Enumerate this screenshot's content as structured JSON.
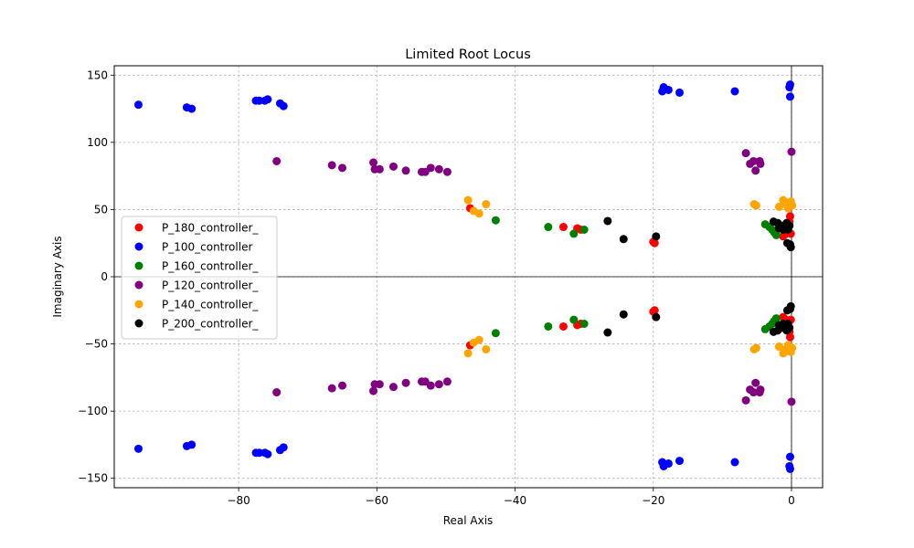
{
  "chart_data": {
    "type": "scatter",
    "title": "Limited Root Locus",
    "xlabel": "Real Axis",
    "ylabel": "Imaginary Axis",
    "xlim": [
      -98,
      4.5
    ],
    "ylim": [
      -157,
      157
    ],
    "xticks": [
      -80,
      -60,
      -40,
      -20,
      0
    ],
    "yticks": [
      -150,
      -100,
      -50,
      0,
      50,
      100,
      150
    ],
    "xtick_labels": [
      "−80",
      "−60",
      "−40",
      "−20",
      "0"
    ],
    "ytick_labels": [
      "−150",
      "−100",
      "−50",
      "0",
      "50",
      "100",
      "150"
    ],
    "grid": true,
    "legend_position": "center-left",
    "mirror_conjugate": true,
    "series": [
      {
        "name": "P_180_controller_",
        "color": "#ff0000",
        "points": [
          [
            -46.5,
            51
          ],
          [
            -33,
            37
          ],
          [
            -30.5,
            35
          ],
          [
            -31,
            36
          ],
          [
            -20,
            26
          ],
          [
            -19.8,
            25
          ],
          [
            -0.2,
            45
          ],
          [
            -0.3,
            41
          ],
          [
            -0.5,
            36
          ],
          [
            -0.8,
            32
          ],
          [
            -1.2,
            30
          ],
          [
            -0.1,
            32
          ]
        ]
      },
      {
        "name": "P_100_controller",
        "color": "#0000ff",
        "points": [
          [
            -94.5,
            128
          ],
          [
            -87.5,
            126
          ],
          [
            -86.8,
            125
          ],
          [
            -77.5,
            131
          ],
          [
            -77,
            131
          ],
          [
            -75.8,
            132
          ],
          [
            -76.2,
            131
          ],
          [
            -74,
            129
          ],
          [
            -73.5,
            127
          ],
          [
            -18.5,
            141
          ],
          [
            -18.7,
            138
          ],
          [
            -17.8,
            139
          ],
          [
            -16.2,
            137
          ],
          [
            -8.2,
            138
          ],
          [
            -0.2,
            143
          ],
          [
            -0.3,
            141
          ],
          [
            -0.2,
            134
          ]
        ]
      },
      {
        "name": "P_160_controller_",
        "color": "#008000",
        "points": [
          [
            -42.8,
            42
          ],
          [
            -35.2,
            37
          ],
          [
            -31.5,
            32
          ],
          [
            -30,
            35
          ],
          [
            -3.8,
            39
          ],
          [
            -3.2,
            37
          ],
          [
            -2.8,
            35
          ],
          [
            -2.5,
            33
          ],
          [
            -2.2,
            31
          ]
        ]
      },
      {
        "name": "P_120_controller_",
        "color": "#800080",
        "points": [
          [
            -74.5,
            86
          ],
          [
            -66.5,
            83
          ],
          [
            -65,
            81
          ],
          [
            -60.5,
            85
          ],
          [
            -60.3,
            80
          ],
          [
            -59.6,
            80
          ],
          [
            -57.6,
            82
          ],
          [
            -55.8,
            79
          ],
          [
            -53.5,
            78
          ],
          [
            -53,
            78
          ],
          [
            -52.2,
            81
          ],
          [
            -51,
            80
          ],
          [
            -49.8,
            78
          ],
          [
            -6.6,
            92
          ],
          [
            -6,
            84
          ],
          [
            -5.5,
            86
          ],
          [
            -5.2,
            79
          ],
          [
            -4.6,
            86
          ],
          [
            -4.5,
            84
          ],
          [
            0,
            93
          ]
        ]
      },
      {
        "name": "P_140_controller_",
        "color": "#ffa500",
        "points": [
          [
            -46.8,
            57
          ],
          [
            -46,
            49
          ],
          [
            -45.2,
            47
          ],
          [
            -44.2,
            54
          ],
          [
            -5.4,
            54
          ],
          [
            -5.1,
            53
          ],
          [
            -1.8,
            52
          ],
          [
            -1.2,
            57
          ],
          [
            -0.9,
            54
          ],
          [
            -0.5,
            51
          ],
          [
            -0.1,
            56
          ],
          [
            0.1,
            53
          ],
          [
            -0.6,
            55
          ]
        ]
      },
      {
        "name": "P_200_controller_",
        "color": "#000000",
        "points": [
          [
            -26.6,
            41.5
          ],
          [
            -24.3,
            28
          ],
          [
            -19.6,
            30
          ],
          [
            -2.6,
            41
          ],
          [
            -2,
            40
          ],
          [
            -1.5,
            38
          ],
          [
            -1,
            37
          ],
          [
            -0.7,
            40
          ],
          [
            -1.8,
            36
          ],
          [
            -0.3,
            38
          ],
          [
            -0.5,
            35
          ],
          [
            -0.2,
            24
          ],
          [
            -0.1,
            22
          ],
          [
            -0.6,
            25
          ],
          [
            -1.2,
            35
          ]
        ]
      }
    ]
  }
}
